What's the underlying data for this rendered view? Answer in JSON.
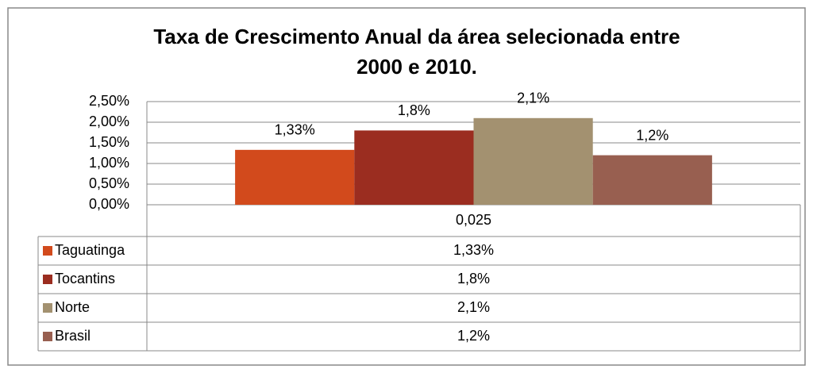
{
  "chart_data": {
    "type": "bar",
    "title_lines": [
      "Taxa de Crescimento Anual da área selecionada entre",
      "2000 e 2010."
    ],
    "categories": [
      "0,025"
    ],
    "series": [
      {
        "name": "Taguatinga",
        "color": "#d24a1c",
        "values": [
          1.33
        ],
        "value_labels": [
          "1,33%"
        ]
      },
      {
        "name": "Tocantins",
        "color": "#9b2d20",
        "values": [
          1.8
        ],
        "value_labels": [
          "1,8%"
        ]
      },
      {
        "name": "Norte",
        "color": "#a39170",
        "values": [
          2.1
        ],
        "value_labels": [
          "2,1%"
        ]
      },
      {
        "name": "Brasil",
        "color": "#985f50",
        "values": [
          1.2
        ],
        "value_labels": [
          "1,2%"
        ]
      }
    ],
    "ylim": [
      0,
      2.5
    ],
    "yticks": [
      {
        "value": 0,
        "label": "0,00%"
      },
      {
        "value": 0.5,
        "label": "0,50%"
      },
      {
        "value": 1,
        "label": "1,00%"
      },
      {
        "value": 1.5,
        "label": "1,50%"
      },
      {
        "value": 2,
        "label": "2,00%"
      },
      {
        "value": 2.5,
        "label": "2,50%"
      }
    ],
    "grid": true,
    "data_table": true
  }
}
